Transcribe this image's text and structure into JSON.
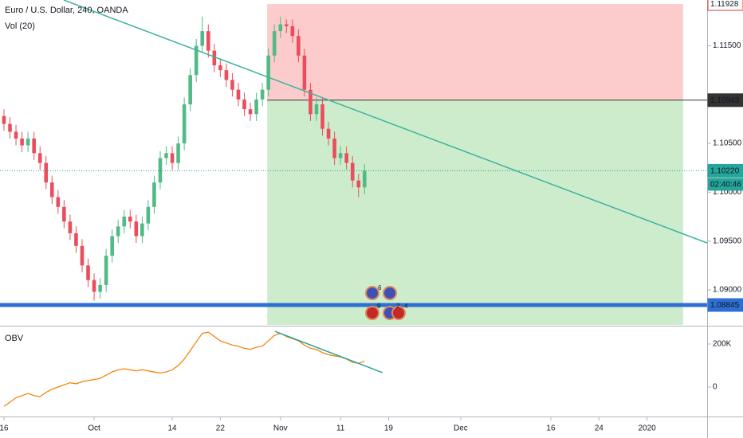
{
  "chart_data": [
    {
      "type": "candlestick",
      "title": "Euro / U.S. Dollar, 240, OANDA",
      "subtitle": "Vol (20)",
      "x": [
        259,
        260,
        261,
        262,
        263,
        264,
        265,
        266,
        267,
        268,
        269,
        270,
        271,
        272,
        273,
        274,
        275,
        276,
        277,
        278,
        279,
        280,
        281,
        282,
        283,
        284,
        285,
        286,
        287,
        288,
        289,
        290,
        291,
        292,
        293,
        294,
        295,
        296,
        297,
        298,
        299,
        300,
        301,
        302,
        303,
        304,
        305,
        306,
        307,
        308,
        309,
        310,
        311,
        312,
        313,
        314,
        315,
        316,
        317,
        318,
        319
      ],
      "open": [
        1.1078,
        1.107,
        1.1062,
        1.1055,
        1.1048,
        1.1055,
        1.104,
        1.103,
        1.101,
        1.0995,
        1.0985,
        1.097,
        1.0958,
        1.0945,
        1.0925,
        1.091,
        1.0898,
        1.0905,
        1.0935,
        1.0955,
        1.0965,
        1.0975,
        1.097,
        1.0955,
        1.0968,
        1.0985,
        1.101,
        1.1035,
        1.104,
        1.103,
        1.105,
        1.109,
        1.112,
        1.115,
        1.1165,
        1.1145,
        1.113,
        1.1125,
        1.1115,
        1.1105,
        1.1095,
        1.1085,
        1.108,
        1.1095,
        1.1105,
        1.114,
        1.1165,
        1.1172,
        1.117,
        1.116,
        1.114,
        1.1105,
        1.108,
        1.109,
        1.1065,
        1.1055,
        1.1035,
        1.104,
        1.103,
        1.1012,
        1.1005
      ],
      "high": [
        1.1085,
        1.1077,
        1.1069,
        1.1062,
        1.1062,
        1.1062,
        1.1047,
        1.1037,
        1.1017,
        1.1002,
        1.0992,
        1.0977,
        1.0965,
        1.0952,
        1.0932,
        1.0917,
        1.0912,
        1.0942,
        1.0962,
        1.0972,
        1.0982,
        1.0982,
        1.0977,
        1.0975,
        1.0992,
        1.1017,
        1.1042,
        1.1047,
        1.1047,
        1.1057,
        1.1097,
        1.1127,
        1.1157,
        1.118,
        1.1172,
        1.1152,
        1.1137,
        1.1132,
        1.1122,
        1.1112,
        1.1102,
        1.1092,
        1.1102,
        1.1112,
        1.1147,
        1.1172,
        1.118,
        1.1177,
        1.1177,
        1.1167,
        1.1147,
        1.1112,
        1.1097,
        1.1097,
        1.1072,
        1.1062,
        1.1047,
        1.1047,
        1.1037,
        1.1019,
        1.1029
      ],
      "low": [
        1.1063,
        1.1055,
        1.1048,
        1.1041,
        1.1041,
        1.1033,
        1.1023,
        1.1003,
        1.0988,
        1.0978,
        1.0963,
        1.0951,
        1.0938,
        1.0918,
        1.0903,
        1.0889,
        1.0891,
        1.0898,
        1.0928,
        1.0948,
        1.0958,
        1.0963,
        1.0948,
        1.0948,
        1.0961,
        1.0978,
        1.1003,
        1.1028,
        1.1023,
        1.1023,
        1.1043,
        1.1083,
        1.1113,
        1.1143,
        1.1138,
        1.1123,
        1.1118,
        1.1108,
        1.1098,
        1.1088,
        1.1078,
        1.1073,
        1.1073,
        1.1088,
        1.1098,
        1.1133,
        1.1158,
        1.1163,
        1.1153,
        1.1133,
        1.1098,
        1.1073,
        1.1073,
        1.1058,
        1.1048,
        1.1028,
        1.1028,
        1.1023,
        1.1005,
        1.0995,
        1.0998
      ],
      "close": [
        1.107,
        1.1062,
        1.1055,
        1.1048,
        1.1055,
        1.104,
        1.103,
        1.101,
        1.0995,
        1.0985,
        1.097,
        1.0958,
        1.0945,
        1.0925,
        1.091,
        1.0898,
        1.0905,
        1.0935,
        1.0955,
        1.0965,
        1.0975,
        1.097,
        1.0955,
        1.0968,
        1.0985,
        1.101,
        1.1035,
        1.104,
        1.103,
        1.105,
        1.109,
        1.112,
        1.115,
        1.1165,
        1.1145,
        1.113,
        1.1125,
        1.1115,
        1.1105,
        1.1095,
        1.1085,
        1.108,
        1.1095,
        1.1105,
        1.114,
        1.1165,
        1.1172,
        1.117,
        1.116,
        1.114,
        1.1105,
        1.108,
        1.109,
        1.1065,
        1.1055,
        1.1035,
        1.104,
        1.103,
        1.1012,
        1.1005,
        1.1022
      ],
      "up_color": "#53b987",
      "down_color": "#eb4d5c",
      "xlim": [
        258.34,
        376
      ],
      "ylim": [
        1.08641,
        1.11969
      ],
      "yticks": [
        {
          "value": 1.115,
          "label": "1.11500"
        },
        {
          "value": 1.105,
          "label": "1.10500"
        },
        {
          "value": 1.1,
          "label": "1.10000"
        },
        {
          "value": 1.095,
          "label": "1.09500"
        },
        {
          "value": 1.09,
          "label": "1.09000"
        }
      ],
      "trendline": {
        "x": [
          268.95,
          375.97
        ],
        "y": [
          1.11969,
          1.09481
        ],
        "color": "#3fb39f"
      },
      "position": {
        "start": 302.8,
        "end": 372,
        "entry": 1.10943,
        "stop": 1.11928,
        "target": 1.0864,
        "entry_label": "1.10943",
        "stop_label": "1.11928"
      },
      "last": {
        "value": 1.1022,
        "label": "1.10220",
        "countdown": "02:40:46",
        "color": "#26a69a"
      },
      "hline": {
        "value": 1.08845,
        "label": "1.08845",
        "color": "#2e6fd4"
      },
      "events": [
        "6",
        "9",
        "2",
        "4"
      ]
    },
    {
      "type": "line",
      "title": "OBV",
      "color": "#f57c00",
      "x": [
        259,
        260,
        261,
        262,
        263,
        264,
        265,
        266,
        267,
        268,
        269,
        270,
        271,
        272,
        273,
        274,
        275,
        276,
        277,
        278,
        279,
        280,
        281,
        282,
        283,
        284,
        285,
        286,
        287,
        288,
        289,
        290,
        291,
        292,
        293,
        294,
        295,
        296,
        297,
        298,
        299,
        300,
        301,
        302,
        303,
        304,
        305,
        306,
        307,
        308,
        309,
        310,
        311,
        312,
        313,
        314,
        315,
        316,
        317,
        318,
        319
      ],
      "values": [
        -90000,
        -70000,
        -50000,
        -40000,
        -30000,
        -40000,
        -45000,
        -25000,
        -10000,
        0,
        10000,
        20000,
        15000,
        25000,
        30000,
        35000,
        40000,
        55000,
        70000,
        80000,
        85000,
        80000,
        75000,
        80000,
        75000,
        70000,
        65000,
        70000,
        80000,
        100000,
        130000,
        170000,
        210000,
        250000,
        255000,
        235000,
        215000,
        205000,
        195000,
        190000,
        180000,
        175000,
        185000,
        190000,
        215000,
        240000,
        250000,
        235000,
        225000,
        215000,
        195000,
        180000,
        175000,
        160000,
        150000,
        145000,
        140000,
        130000,
        115000,
        110000,
        120000
      ],
      "xlim": [
        258.34,
        376
      ],
      "ylim": [
        -125926,
        270370
      ],
      "yticks": [
        {
          "value": 200000,
          "label": "200K"
        },
        0
      ],
      "trendline": {
        "x": [
          304.1,
          322
        ],
        "y": [
          259000,
          67000
        ],
        "color": "#26a69a"
      },
      "xticks": [
        {
          "value": 259,
          "label": "16"
        },
        {
          "value": 274,
          "label": "Oct"
        },
        {
          "value": 287,
          "label": "14"
        },
        {
          "value": 295,
          "label": "22"
        },
        {
          "value": 305,
          "label": "Nov"
        },
        {
          "value": 315,
          "label": "11"
        },
        {
          "value": 323,
          "label": "19"
        },
        {
          "value": 335,
          "label": "Dec"
        },
        {
          "value": 350,
          "label": "16"
        },
        {
          "value": 358,
          "label": "24"
        },
        {
          "value": 366,
          "label": "2020"
        }
      ]
    }
  ]
}
